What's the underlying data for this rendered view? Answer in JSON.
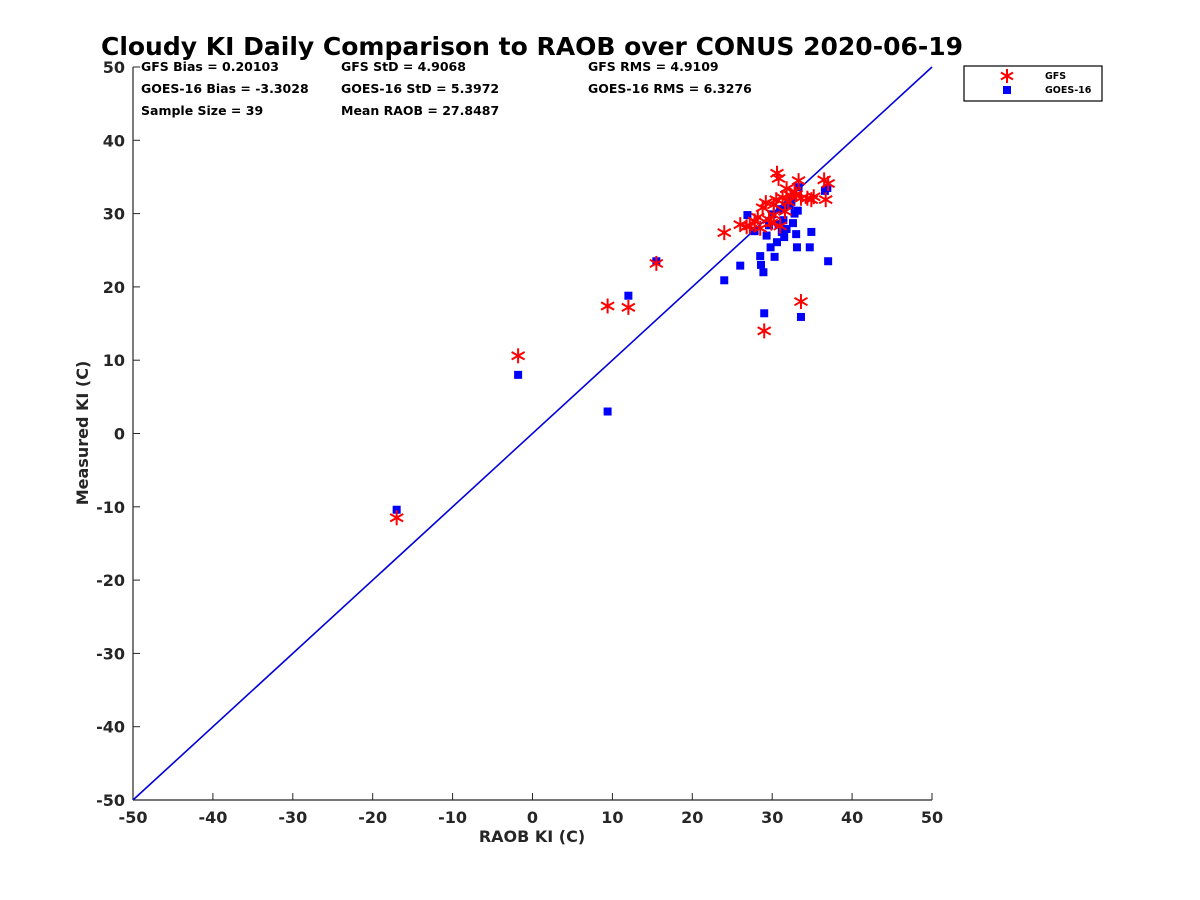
{
  "chart_data": {
    "type": "scatter",
    "title": "Cloudy KI Daily Comparison to RAOB over CONUS 2020-06-19",
    "xlabel": "RAOB KI (C)",
    "ylabel": "Measured KI (C)",
    "xlim": [
      -50,
      50
    ],
    "ylim": [
      -50,
      50
    ],
    "xticks": [
      "-50",
      "-40",
      "-30",
      "-20",
      "-10",
      "0",
      "10",
      "20",
      "30",
      "40",
      "50"
    ],
    "yticks": [
      "-50",
      "-40",
      "-30",
      "-20",
      "-10",
      "0",
      "10",
      "20",
      "30",
      "40",
      "50"
    ],
    "grid": false,
    "legend_position": "top-right-outside",
    "reference_line": {
      "name": "1:1 line",
      "x": [
        -50,
        50
      ],
      "y": [
        -50,
        50
      ],
      "color": "#0000dd"
    },
    "stats": [
      "GFS Bias = 0.20103",
      "GFS StD = 4.9068",
      "GFS RMS = 4.9109",
      "GOES-16 Bias = -3.3028",
      "GOES-16 StD = 5.3972",
      "GOES-16 RMS = 6.3276",
      "Sample Size = 39",
      "Mean RAOB = 27.8487"
    ],
    "series": [
      {
        "name": "GFS",
        "marker": "asterisk",
        "color": "#ff0000",
        "points": [
          [
            -17,
            -11.5
          ],
          [
            -1.8,
            10.6
          ],
          [
            9.4,
            17.4
          ],
          [
            12,
            17.2
          ],
          [
            15.5,
            23.2
          ],
          [
            24,
            27.4
          ],
          [
            26,
            28.5
          ],
          [
            26.8,
            28.2
          ],
          [
            27.8,
            29
          ],
          [
            28.5,
            28
          ],
          [
            28.8,
            30.8
          ],
          [
            29.2,
            31.5
          ],
          [
            29.6,
            29.2
          ],
          [
            30.2,
            29.8
          ],
          [
            30.6,
            35.5
          ],
          [
            30.8,
            34.8
          ],
          [
            31,
            28.3
          ],
          [
            31.3,
            32.2
          ],
          [
            31.8,
            33.4
          ],
          [
            32.3,
            32.5
          ],
          [
            32.8,
            33
          ],
          [
            33.3,
            34.5
          ],
          [
            33.6,
            32.1
          ],
          [
            34.4,
            32.1
          ],
          [
            34.9,
            31.9
          ],
          [
            36.5,
            34.6
          ],
          [
            37,
            34.1
          ],
          [
            36.7,
            31.9
          ],
          [
            33.6,
            18
          ],
          [
            29,
            14
          ],
          [
            30.2,
            31.2
          ],
          [
            31.6,
            30.3
          ],
          [
            33,
            32.6
          ],
          [
            27.2,
            28.3
          ],
          [
            29.9,
            28.7
          ],
          [
            28.2,
            29.5
          ],
          [
            32,
            31.6
          ],
          [
            35.2,
            32.3
          ],
          [
            30.5,
            31.9
          ]
        ]
      },
      {
        "name": "GOES-16",
        "marker": "square",
        "color": "#0000ff",
        "points": [
          [
            -17,
            -10.4
          ],
          [
            -1.8,
            8
          ],
          [
            9.4,
            3
          ],
          [
            12,
            18.8
          ],
          [
            15.5,
            23.5
          ],
          [
            24,
            20.9
          ],
          [
            26,
            22.9
          ],
          [
            26.9,
            29.8
          ],
          [
            27.8,
            27.6
          ],
          [
            28.5,
            24.2
          ],
          [
            28.6,
            23
          ],
          [
            28.9,
            22
          ],
          [
            29,
            16.4
          ],
          [
            29.3,
            27
          ],
          [
            29.6,
            28.4
          ],
          [
            29.8,
            25.4
          ],
          [
            30.3,
            24.1
          ],
          [
            30.6,
            26.1
          ],
          [
            30.8,
            28.6
          ],
          [
            31,
            30.6
          ],
          [
            31.2,
            27.5
          ],
          [
            31.5,
            26.8
          ],
          [
            31.8,
            27.9
          ],
          [
            32.2,
            31.1
          ],
          [
            32.4,
            31.6
          ],
          [
            32.6,
            28.7
          ],
          [
            32.8,
            30
          ],
          [
            33,
            27.2
          ],
          [
            33.1,
            25.4
          ],
          [
            33.3,
            33.6
          ],
          [
            33.6,
            15.9
          ],
          [
            34.7,
            25.4
          ],
          [
            34.9,
            27.5
          ],
          [
            36.6,
            33.1
          ],
          [
            36.9,
            33.5
          ],
          [
            37,
            23.5
          ],
          [
            33.2,
            30.4
          ],
          [
            31.4,
            29.1
          ],
          [
            30,
            29.9
          ]
        ]
      }
    ]
  }
}
